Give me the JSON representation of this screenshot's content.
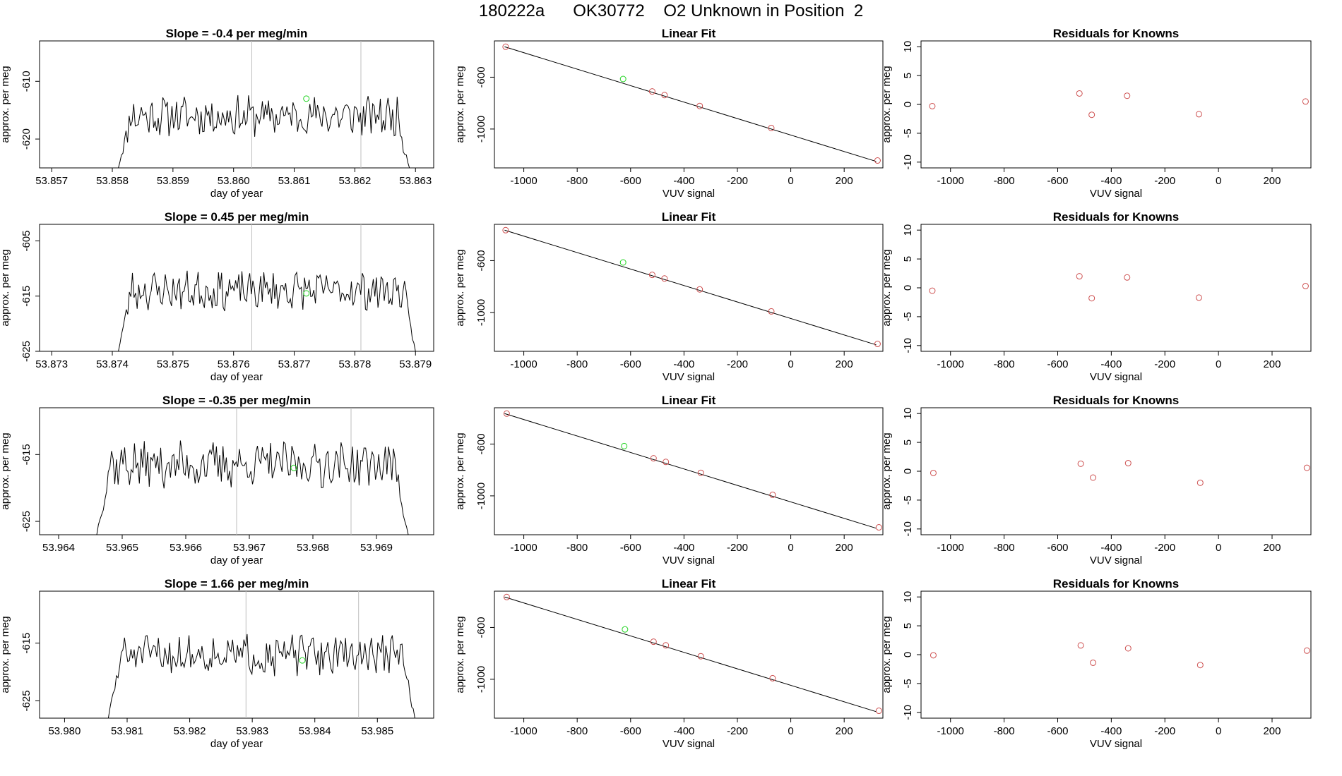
{
  "figure": {
    "title": "180222a      OK30772    O2 Unknown in Position  2",
    "colors": {
      "line": "#000000",
      "residual": "#cd4f4f",
      "highlight": "#22d422",
      "marker_line": "#bebebe",
      "fit_point": "#cd4f4f"
    }
  },
  "chart_data": [
    {
      "type": "line",
      "row": 0,
      "col": 0,
      "title": "Slope =  -0.4  per meg/min",
      "xlabel": "day of year",
      "ylabel": "approx. per meg",
      "xlim": [
        53.8568,
        53.8633
      ],
      "ylim": [
        -625,
        -603
      ],
      "x_ticks": [
        53.857,
        53.858,
        53.859,
        53.86,
        53.861,
        53.862,
        53.863
      ],
      "x_tick_labels": [
        "53.857",
        "53.858",
        "53.859",
        "53.860",
        "53.861",
        "53.862",
        "53.863"
      ],
      "y_ticks": [
        -610,
        -620
      ],
      "y_tick_labels": [
        "-610",
        "-620"
      ],
      "series_start": 53.8581,
      "series_end": 53.8629,
      "series_base": -616,
      "series_amp": 3,
      "series_seed": 11,
      "vlines": [
        53.8603,
        53.8621
      ],
      "highlight_point": {
        "x": 53.8612,
        "y": -613
      }
    },
    {
      "type": "line",
      "row": 1,
      "col": 0,
      "title": "Slope =  0.45  per meg/min",
      "xlabel": "day of year",
      "ylabel": "approx. per meg",
      "xlim": [
        53.8728,
        53.8793
      ],
      "ylim": [
        -625,
        -602
      ],
      "x_ticks": [
        53.873,
        53.874,
        53.875,
        53.876,
        53.877,
        53.878,
        53.879
      ],
      "x_tick_labels": [
        "53.873",
        "53.874",
        "53.875",
        "53.876",
        "53.877",
        "53.878",
        "53.879"
      ],
      "y_ticks": [
        -605,
        -615,
        -625
      ],
      "y_tick_labels": [
        "-605",
        "-615",
        "-625"
      ],
      "series_start": 53.8741,
      "series_end": 53.879,
      "series_base": -614,
      "series_amp": 3,
      "series_seed": 23,
      "vlines": [
        53.8763,
        53.8781
      ],
      "highlight_point": {
        "x": 53.8772,
        "y": -614.5
      }
    },
    {
      "type": "line",
      "row": 2,
      "col": 0,
      "title": "Slope =  -0.35  per meg/min",
      "xlabel": "day of year",
      "ylabel": "approx. per meg",
      "xlim": [
        53.9637,
        53.9699
      ],
      "ylim": [
        -627,
        -608
      ],
      "x_ticks": [
        53.964,
        53.965,
        53.966,
        53.967,
        53.968,
        53.969
      ],
      "x_tick_labels": [
        "53.964",
        "53.965",
        "53.966",
        "53.967",
        "53.968",
        "53.969"
      ],
      "y_ticks": [
        -615,
        -625
      ],
      "y_tick_labels": [
        "-615",
        "-625"
      ],
      "series_start": 53.9646,
      "series_end": 53.9695,
      "series_base": -616.5,
      "series_amp": 3,
      "series_seed": 37,
      "vlines": [
        53.9668,
        53.9686
      ],
      "highlight_point": {
        "x": 53.9677,
        "y": -617
      }
    },
    {
      "type": "line",
      "row": 3,
      "col": 0,
      "title": "Slope =  1.66  per meg/min",
      "xlabel": "day of year",
      "ylabel": "approx. per meg",
      "xlim": [
        53.9796,
        53.9859
      ],
      "ylim": [
        -628,
        -606
      ],
      "x_ticks": [
        53.98,
        53.981,
        53.982,
        53.983,
        53.984,
        53.985
      ],
      "x_tick_labels": [
        "53.980",
        "53.981",
        "53.982",
        "53.983",
        "53.984",
        "53.985"
      ],
      "y_ticks": [
        -615,
        -625
      ],
      "y_tick_labels": [
        "-615",
        "-625"
      ],
      "series_start": 53.9807,
      "series_end": 53.9856,
      "series_base": -617,
      "series_amp": 3,
      "series_seed": 51,
      "vlines": [
        53.9829,
        53.9847
      ],
      "highlight_point": {
        "x": 53.9838,
        "y": -618
      }
    },
    {
      "type": "scatter",
      "row": 0,
      "col": 1,
      "title": "Linear Fit",
      "xlabel": "VUV signal",
      "ylabel": "approx. per meg",
      "xlim": [
        -1110,
        345
      ],
      "ylim": [
        -1300,
        -320
      ],
      "x_ticks": [
        -1000,
        -800,
        -600,
        -400,
        -200,
        0,
        200
      ],
      "x_tick_labels": [
        "-1000",
        "-800",
        "-600",
        "-400",
        "-200",
        "0",
        "200"
      ],
      "y_ticks": [
        -600,
        -1000
      ],
      "y_tick_labels": [
        "-600",
        "-1000"
      ],
      "fit_line": [
        [
          -1072,
          -365
        ],
        [
          320,
          -1250
        ]
      ],
      "points": [
        [
          -1068,
          -365
        ],
        [
          -519,
          -710
        ],
        [
          -473,
          -738
        ],
        [
          -341,
          -822
        ],
        [
          -73,
          -992
        ],
        [
          325,
          -1243
        ]
      ],
      "highlight_point": [
        -628,
        -614
      ]
    },
    {
      "type": "scatter",
      "row": 1,
      "col": 1,
      "title": "Linear Fit",
      "xlabel": "VUV signal",
      "ylabel": "approx. per meg",
      "xlim": [
        -1110,
        345
      ],
      "ylim": [
        -1300,
        -320
      ],
      "x_ticks": [
        -1000,
        -800,
        -600,
        -400,
        -200,
        0,
        200
      ],
      "x_tick_labels": [
        "-1000",
        "-800",
        "-600",
        "-400",
        "-200",
        "0",
        "200"
      ],
      "y_ticks": [
        -600,
        -1000
      ],
      "y_tick_labels": [
        "-600",
        "-1000"
      ],
      "fit_line": [
        [
          -1072,
          -365
        ],
        [
          320,
          -1250
        ]
      ],
      "points": [
        [
          -1068,
          -365
        ],
        [
          -519,
          -710
        ],
        [
          -473,
          -738
        ],
        [
          -341,
          -822
        ],
        [
          -73,
          -992
        ],
        [
          325,
          -1243
        ]
      ],
      "highlight_point": [
        -628,
        -614
      ]
    },
    {
      "type": "scatter",
      "row": 2,
      "col": 1,
      "title": "Linear Fit",
      "xlabel": "VUV signal",
      "ylabel": "approx. per meg",
      "xlim": [
        -1110,
        345
      ],
      "ylim": [
        -1300,
        -320
      ],
      "x_ticks": [
        -1000,
        -800,
        -600,
        -400,
        -200,
        0,
        200
      ],
      "x_tick_labels": [
        "-1000",
        "-800",
        "-600",
        "-400",
        "-200",
        "0",
        "200"
      ],
      "y_ticks": [
        -600,
        -1000
      ],
      "y_tick_labels": [
        "-600",
        "-1000"
      ],
      "fit_line": [
        [
          -1072,
          -365
        ],
        [
          320,
          -1250
        ]
      ],
      "points": [
        [
          -1064,
          -365
        ],
        [
          -514,
          -710
        ],
        [
          -468,
          -738
        ],
        [
          -337,
          -822
        ],
        [
          -68,
          -992
        ],
        [
          330,
          -1243
        ]
      ],
      "highlight_point": [
        -624,
        -616
      ]
    },
    {
      "type": "scatter",
      "row": 3,
      "col": 1,
      "title": "Linear Fit",
      "xlabel": "VUV signal",
      "ylabel": "approx. per meg",
      "xlim": [
        -1110,
        345
      ],
      "ylim": [
        -1300,
        -320
      ],
      "x_ticks": [
        -1000,
        -800,
        -600,
        -400,
        -200,
        0,
        200
      ],
      "x_tick_labels": [
        "-1000",
        "-800",
        "-600",
        "-400",
        "-200",
        "0",
        "200"
      ],
      "y_ticks": [
        -600,
        -1000
      ],
      "y_tick_labels": [
        "-600",
        "-1000"
      ],
      "fit_line": [
        [
          -1072,
          -365
        ],
        [
          320,
          -1250
        ]
      ],
      "points": [
        [
          -1064,
          -365
        ],
        [
          -514,
          -710
        ],
        [
          -468,
          -738
        ],
        [
          -337,
          -822
        ],
        [
          -68,
          -992
        ],
        [
          330,
          -1243
        ]
      ],
      "highlight_point": [
        -621,
        -615
      ]
    },
    {
      "type": "scatter",
      "row": 0,
      "col": 2,
      "title": "Residuals for Knowns",
      "xlabel": "VUV signal",
      "ylabel": "approx. per meg",
      "xlim": [
        -1110,
        345
      ],
      "ylim": [
        -11,
        11
      ],
      "x_ticks": [
        -1000,
        -800,
        -600,
        -400,
        -200,
        0,
        200
      ],
      "x_tick_labels": [
        "-1000",
        "-800",
        "-600",
        "-400",
        "-200",
        "0",
        "200"
      ],
      "y_ticks": [
        10,
        5,
        0,
        -5,
        -10
      ],
      "y_tick_labels": [
        "10",
        "5",
        "0",
        "-5",
        "-10"
      ],
      "points": [
        [
          -1068,
          -0.3
        ],
        [
          -519,
          1.9
        ],
        [
          -473,
          -1.8
        ],
        [
          -341,
          1.5
        ],
        [
          -73,
          -1.7
        ],
        [
          325,
          0.5
        ]
      ]
    },
    {
      "type": "scatter",
      "row": 1,
      "col": 2,
      "title": "Residuals for Knowns",
      "xlabel": "VUV signal",
      "ylabel": "approx. per meg",
      "xlim": [
        -1110,
        345
      ],
      "ylim": [
        -11,
        11
      ],
      "x_ticks": [
        -1000,
        -800,
        -600,
        -400,
        -200,
        0,
        200
      ],
      "x_tick_labels": [
        "-1000",
        "-800",
        "-600",
        "-400",
        "-200",
        "0",
        "200"
      ],
      "y_ticks": [
        10,
        5,
        0,
        -5,
        -10
      ],
      "y_tick_labels": [
        "10",
        "5",
        "0",
        "-5",
        "-10"
      ],
      "points": [
        [
          -1068,
          -0.5
        ],
        [
          -519,
          2.0
        ],
        [
          -473,
          -1.8
        ],
        [
          -341,
          1.8
        ],
        [
          -73,
          -1.7
        ],
        [
          325,
          0.3
        ]
      ]
    },
    {
      "type": "scatter",
      "row": 2,
      "col": 2,
      "title": "Residuals for Knowns",
      "xlabel": "VUV signal",
      "ylabel": "approx. per meg",
      "xlim": [
        -1110,
        345
      ],
      "ylim": [
        -11,
        11
      ],
      "x_ticks": [
        -1000,
        -800,
        -600,
        -400,
        -200,
        0,
        200
      ],
      "x_tick_labels": [
        "-1000",
        "-800",
        "-600",
        "-400",
        "-200",
        "0",
        "200"
      ],
      "y_ticks": [
        10,
        5,
        0,
        -5,
        -10
      ],
      "y_tick_labels": [
        "10",
        "5",
        "0",
        "-5",
        "-10"
      ],
      "points": [
        [
          -1064,
          -0.3
        ],
        [
          -514,
          1.3
        ],
        [
          -468,
          -1.1
        ],
        [
          -337,
          1.4
        ],
        [
          -68,
          -2.0
        ],
        [
          330,
          0.6
        ]
      ]
    },
    {
      "type": "scatter",
      "row": 3,
      "col": 2,
      "title": "Residuals for Knowns",
      "xlabel": "VUV signal",
      "ylabel": "approx. per meg",
      "xlim": [
        -1110,
        345
      ],
      "ylim": [
        -11,
        11
      ],
      "x_ticks": [
        -1000,
        -800,
        -600,
        -400,
        -200,
        0,
        200
      ],
      "x_tick_labels": [
        "-1000",
        "-800",
        "-600",
        "-400",
        "-200",
        "0",
        "200"
      ],
      "y_ticks": [
        10,
        5,
        0,
        -5,
        -10
      ],
      "y_tick_labels": [
        "10",
        "5",
        "0",
        "-5",
        "-10"
      ],
      "points": [
        [
          -1064,
          -0.1
        ],
        [
          -514,
          1.6
        ],
        [
          -468,
          -1.4
        ],
        [
          -337,
          1.1
        ],
        [
          -68,
          -1.8
        ],
        [
          330,
          0.7
        ]
      ]
    }
  ]
}
